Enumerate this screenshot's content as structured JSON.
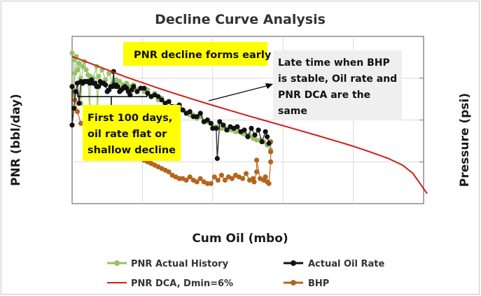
{
  "chart_data": {
    "type": "scatter",
    "title": "Decline Curve Analysis",
    "xlabel": "Cum Oil (mbo)",
    "ylabel": "PNR (bbl/day)",
    "y2label": "Pressure (psi)",
    "xlim": [
      0,
      100
    ],
    "ylim": [
      0,
      100
    ],
    "y2lim": [
      0,
      100
    ],
    "grid": true,
    "legend": "bottom",
    "series": [
      {
        "name": "PNR Actual History",
        "kind": "markers",
        "color": "#96c26a",
        "points": [
          [
            0,
            90
          ],
          [
            0.5,
            86
          ],
          [
            0.8,
            78
          ],
          [
            1.2,
            88
          ],
          [
            1.6,
            80
          ],
          [
            2,
            84
          ],
          [
            2.4,
            75
          ],
          [
            3,
            82
          ],
          [
            3.5,
            85
          ],
          [
            4,
            80
          ],
          [
            4.5,
            77
          ],
          [
            5.2,
            76
          ],
          [
            6,
            75
          ],
          [
            7,
            82
          ],
          [
            7.5,
            76
          ],
          [
            8.5,
            80
          ],
          [
            9.5,
            74
          ],
          [
            10.5,
            78
          ],
          [
            11.5,
            72
          ],
          [
            12.5,
            74
          ],
          [
            13.5,
            73
          ],
          [
            14.5,
            71
          ],
          [
            15.5,
            72
          ],
          [
            16.5,
            70
          ],
          [
            17.5,
            71
          ],
          [
            18.5,
            68
          ],
          [
            19.5,
            69
          ],
          [
            20.5,
            67
          ],
          [
            21.5,
            68
          ],
          [
            22.5,
            64
          ],
          [
            23.5,
            66
          ],
          [
            24.5,
            62
          ],
          [
            25.5,
            63
          ],
          [
            26.5,
            60
          ],
          [
            27.5,
            61
          ],
          [
            28.5,
            58
          ],
          [
            29.5,
            58
          ],
          [
            30.5,
            56
          ],
          [
            31.5,
            56
          ],
          [
            32.5,
            54
          ],
          [
            33.5,
            53
          ],
          [
            34.5,
            53
          ],
          [
            35.5,
            51
          ],
          [
            36.5,
            52
          ],
          [
            37.5,
            49
          ],
          [
            38.5,
            49
          ],
          [
            39.5,
            48
          ],
          [
            40.5,
            46
          ],
          [
            41.5,
            46
          ],
          [
            42.5,
            45
          ],
          [
            43.5,
            45
          ],
          [
            44.5,
            44
          ],
          [
            45.5,
            44
          ],
          [
            46.5,
            43
          ],
          [
            47.5,
            43
          ],
          [
            48.5,
            42
          ],
          [
            49.5,
            41
          ],
          [
            50.5,
            41
          ],
          [
            51.5,
            39
          ],
          [
            52.5,
            38
          ],
          [
            53.5,
            38
          ],
          [
            54.5,
            37
          ],
          [
            55.5,
            35
          ],
          [
            56.5,
            32
          ],
          [
            0.5,
            65
          ],
          [
            2.5,
            60
          ],
          [
            5,
            55
          ],
          [
            7.2,
            50
          ]
        ]
      },
      {
        "name": "Actual Oil Rate",
        "kind": "markers",
        "color": "#111111",
        "points": [
          [
            0,
            70
          ],
          [
            0.5,
            57
          ],
          [
            1,
            67
          ],
          [
            1.5,
            72
          ],
          [
            2,
            60
          ],
          [
            2.5,
            73
          ],
          [
            3,
            72
          ],
          [
            3.5,
            73
          ],
          [
            4,
            73
          ],
          [
            4.5,
            73
          ],
          [
            5,
            72
          ],
          [
            5.5,
            74
          ],
          [
            6,
            72
          ],
          [
            6.5,
            72
          ],
          [
            7,
            70
          ],
          [
            7.5,
            70
          ],
          [
            8,
            73
          ],
          [
            8.5,
            72
          ],
          [
            9,
            72
          ],
          [
            9.5,
            71
          ],
          [
            10,
            67
          ],
          [
            10.5,
            68
          ],
          [
            11,
            70
          ],
          [
            11.5,
            70
          ],
          [
            12,
            71
          ],
          [
            12.5,
            70
          ],
          [
            13,
            70
          ],
          [
            13.5,
            67
          ],
          [
            14,
            68
          ],
          [
            14.5,
            69
          ],
          [
            15,
            70
          ],
          [
            15.5,
            69
          ],
          [
            16,
            67
          ],
          [
            16.5,
            65
          ],
          [
            17,
            68
          ],
          [
            17.5,
            70
          ],
          [
            18.5,
            67
          ],
          [
            19.5,
            69
          ],
          [
            20.5,
            69
          ],
          [
            21.5,
            66
          ],
          [
            22.5,
            64
          ],
          [
            23.5,
            65
          ],
          [
            24.5,
            64
          ],
          [
            25.5,
            62
          ],
          [
            26.5,
            60
          ],
          [
            27.5,
            61
          ],
          [
            28.5,
            58
          ],
          [
            29.5,
            57
          ],
          [
            30.5,
            59
          ],
          [
            31.5,
            56
          ],
          [
            32.5,
            54
          ],
          [
            33.5,
            55
          ],
          [
            34.5,
            52
          ],
          [
            35.5,
            52
          ],
          [
            36.5,
            54
          ],
          [
            37.5,
            49
          ],
          [
            38.5,
            50
          ],
          [
            39.5,
            48
          ],
          [
            40,
            45
          ],
          [
            41,
            45
          ],
          [
            42,
            49
          ],
          [
            43,
            47
          ],
          [
            44,
            44
          ],
          [
            45,
            46
          ],
          [
            46,
            45
          ],
          [
            47,
            46
          ],
          [
            48,
            43
          ],
          [
            49,
            44
          ],
          [
            50,
            40
          ],
          [
            51,
            45
          ],
          [
            52,
            41
          ],
          [
            53,
            44
          ],
          [
            54,
            37
          ],
          [
            55,
            43
          ],
          [
            55.5,
            40
          ],
          [
            56,
            36
          ],
          [
            0,
            47
          ],
          [
            41.3,
            27
          ],
          [
            11.8,
            79
          ],
          [
            12.5,
            71
          ]
        ]
      },
      {
        "name": "PNR DCA, Dmin=6%",
        "kind": "line",
        "color": "#cc1f1a",
        "points": [
          [
            0,
            88
          ],
          [
            5,
            84
          ],
          [
            10,
            80
          ],
          [
            15,
            76
          ],
          [
            20,
            72.3
          ],
          [
            25,
            68.7
          ],
          [
            30,
            65.3
          ],
          [
            35,
            62
          ],
          [
            40,
            58.8
          ],
          [
            45,
            55.7
          ],
          [
            50,
            52.6
          ],
          [
            55,
            49.6
          ],
          [
            60,
            46.6
          ],
          [
            65,
            43.6
          ],
          [
            70,
            40.6
          ],
          [
            75,
            37.5
          ],
          [
            80,
            34.3
          ],
          [
            85,
            30.8
          ],
          [
            90,
            27
          ],
          [
            94,
            23
          ],
          [
            97,
            18
          ],
          [
            99,
            12
          ],
          [
            101,
            6
          ]
        ]
      },
      {
        "name": "BHP",
        "kind": "markers",
        "color": "#b5651d",
        "points": [
          [
            0,
            70
          ],
          [
            0.8,
            62
          ],
          [
            1.5,
            55
          ],
          [
            2.5,
            48
          ],
          [
            3.5,
            48
          ],
          [
            4.5,
            47
          ],
          [
            5.5,
            45
          ],
          [
            6.5,
            45
          ],
          [
            7.5,
            43
          ],
          [
            8.5,
            42
          ],
          [
            9.5,
            40
          ],
          [
            10.5,
            38
          ],
          [
            11.5,
            36
          ],
          [
            12.5,
            35
          ],
          [
            13.5,
            34
          ],
          [
            14.5,
            33
          ],
          [
            15.5,
            32
          ],
          [
            16.5,
            31
          ],
          [
            17.5,
            30
          ],
          [
            18.5,
            28
          ],
          [
            19.5,
            27
          ],
          [
            20.5,
            26
          ],
          [
            21.5,
            25
          ],
          [
            22.5,
            24
          ],
          [
            23.5,
            23
          ],
          [
            24.5,
            22
          ],
          [
            25.5,
            21
          ],
          [
            26.5,
            20
          ],
          [
            27.5,
            19
          ],
          [
            28.5,
            17
          ],
          [
            29.5,
            16
          ],
          [
            30.5,
            15
          ],
          [
            31.5,
            15
          ],
          [
            32.5,
            14
          ],
          [
            33.5,
            16
          ],
          [
            34.5,
            14
          ],
          [
            35.5,
            13
          ],
          [
            36.5,
            15
          ],
          [
            37.5,
            13
          ],
          [
            38.5,
            12
          ],
          [
            39.5,
            12
          ],
          [
            40.5,
            16
          ],
          [
            41.5,
            14
          ],
          [
            42.5,
            17
          ],
          [
            43.5,
            14
          ],
          [
            44.5,
            16
          ],
          [
            45.5,
            15
          ],
          [
            46.5,
            17
          ],
          [
            47.5,
            16
          ],
          [
            48.5,
            15
          ],
          [
            49.5,
            18
          ],
          [
            50.5,
            14
          ],
          [
            51.5,
            15
          ],
          [
            52.5,
            19
          ],
          [
            53.5,
            15
          ],
          [
            54.5,
            14
          ],
          [
            55,
            16
          ],
          [
            55.5,
            13
          ],
          [
            56,
            12
          ],
          [
            56.5,
            25
          ],
          [
            56.5,
            31
          ],
          [
            56.5,
            37
          ],
          [
            51.8,
            13
          ],
          [
            52.5,
            26
          ]
        ]
      }
    ],
    "annotations": [
      {
        "key": "pnr_early",
        "lines": [
          "PNR decline forms early"
        ]
      },
      {
        "key": "late_time",
        "lines": [
          "Late time when BHP",
          "is stable, Oil rate and",
          "PNR DCA are the",
          "same"
        ]
      },
      {
        "key": "first_100",
        "lines": [
          "First 100 days,",
          "oil rate flat or",
          "shallow decline"
        ]
      }
    ]
  },
  "colors": {
    "note_yellow": "#ffff00",
    "note_gray": "#efefef",
    "grid": "#d9d9d9",
    "frame": "#8c8c8c"
  }
}
